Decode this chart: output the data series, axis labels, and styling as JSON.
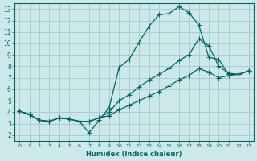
{
  "xlabel": "Humidex (Indice chaleur)",
  "bg_color": "#cce8e8",
  "grid_color": "#aacccc",
  "line_color": "#006666",
  "xlim": [
    -0.5,
    23.5
  ],
  "ylim": [
    1.5,
    13.5
  ],
  "xticks": [
    0,
    1,
    2,
    3,
    4,
    5,
    6,
    7,
    8,
    9,
    10,
    11,
    12,
    13,
    14,
    15,
    16,
    17,
    18,
    19,
    20,
    21,
    22,
    23
  ],
  "yticks": [
    2,
    3,
    4,
    5,
    6,
    7,
    8,
    9,
    10,
    11,
    12,
    13
  ],
  "line1_x": [
    0,
    1,
    2,
    3,
    4,
    5,
    6,
    7,
    8,
    9,
    10,
    11,
    12,
    13,
    14,
    15,
    16,
    17,
    18,
    19,
    20,
    21,
    22,
    23
  ],
  "line1_y": [
    4.1,
    3.8,
    3.3,
    3.2,
    3.5,
    3.4,
    3.2,
    2.2,
    3.3,
    4.4,
    7.9,
    8.6,
    10.1,
    11.5,
    12.5,
    12.6,
    13.2,
    12.7,
    11.6,
    8.8,
    8.6,
    7.3,
    7.3,
    7.6
  ],
  "line2_x": [
    0,
    1,
    2,
    3,
    4,
    5,
    6,
    7,
    8,
    9,
    10,
    11,
    12,
    13,
    14,
    15,
    16,
    17,
    18,
    19,
    20,
    21,
    22,
    23
  ],
  "line2_y": [
    4.1,
    3.8,
    3.3,
    3.2,
    3.5,
    3.4,
    3.2,
    3.2,
    3.5,
    4.0,
    5.0,
    5.5,
    6.2,
    6.8,
    7.3,
    7.8,
    8.5,
    9.0,
    10.4,
    9.8,
    8.0,
    7.4,
    7.3,
    7.6
  ],
  "line3_x": [
    0,
    1,
    2,
    3,
    4,
    5,
    6,
    7,
    8,
    9,
    10,
    11,
    12,
    13,
    14,
    15,
    16,
    17,
    18,
    19,
    20,
    21,
    22,
    23
  ],
  "line3_y": [
    4.1,
    3.8,
    3.3,
    3.2,
    3.5,
    3.4,
    3.2,
    3.2,
    3.5,
    3.7,
    4.2,
    4.6,
    5.0,
    5.4,
    5.8,
    6.3,
    6.8,
    7.2,
    7.8,
    7.5,
    7.0,
    7.2,
    7.3,
    7.6
  ]
}
